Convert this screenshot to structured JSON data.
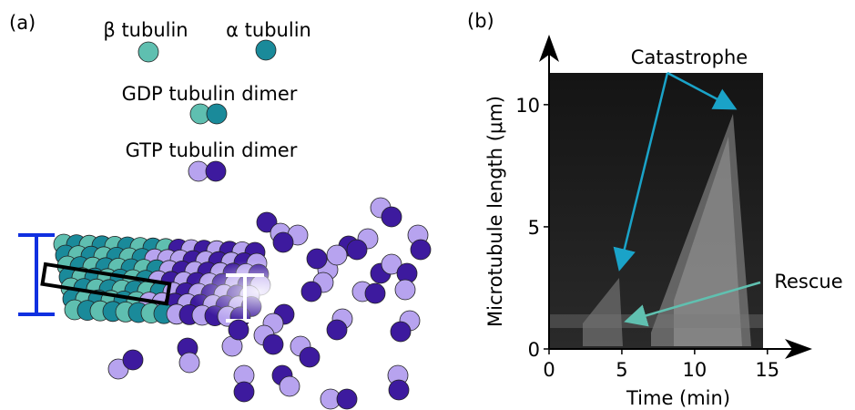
{
  "panel_a": {
    "label": "(a)",
    "beta": "β tubulin",
    "alpha": "α tubulin",
    "gdp": "GDP tubulin dimer",
    "gtp": "GTP tubulin dimer"
  },
  "panel_b": {
    "label": "(b)",
    "x_label": "Time (min)",
    "y_label": "Microtubule length (μm)",
    "xlim": [
      0,
      14.7
    ],
    "xticks": [
      0,
      5,
      10,
      15
    ],
    "ylim": [
      0,
      11.3
    ],
    "yticks": [
      0,
      5,
      10
    ],
    "annotations": [
      "Catastrophe",
      "Rescue"
    ]
  }
}
